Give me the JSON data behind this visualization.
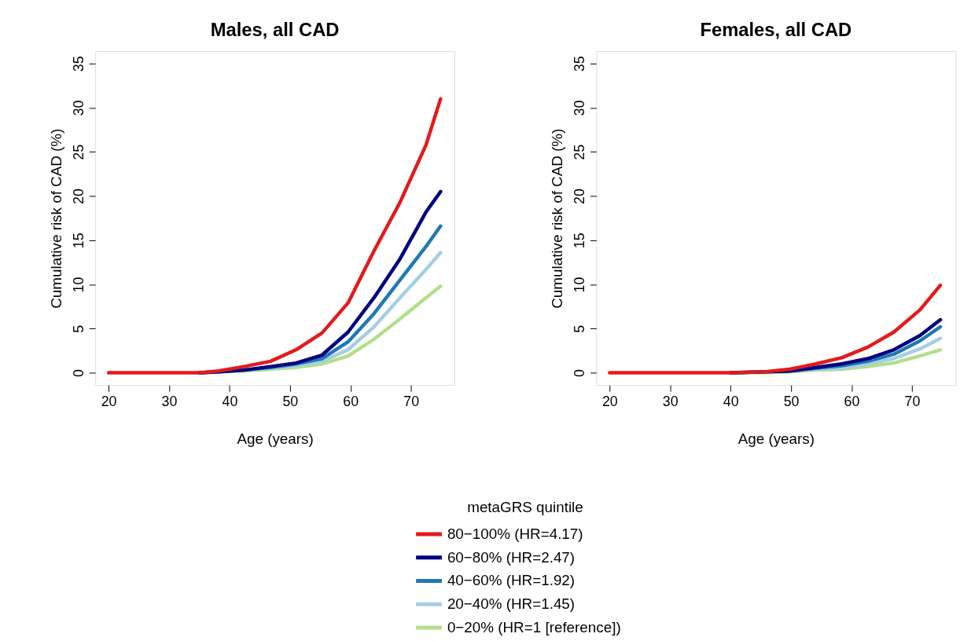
{
  "chart_data": [
    {
      "type": "line",
      "title": "Males, all CAD",
      "xlabel": "Age (years)",
      "ylabel": "Cumulative risk of CAD (%)",
      "xlim": [
        17.8,
        77.2
      ],
      "xticks": [
        20,
        30,
        40,
        50,
        60,
        70
      ],
      "ylim": [
        -1.4,
        36.4
      ],
      "yticks": [
        0,
        5,
        10,
        15,
        20,
        25,
        30,
        35
      ],
      "grid": false,
      "legend": "bottom",
      "legend_title": "metaGRS quintile",
      "line_style": "solid",
      "marker": "none",
      "series": [
        {
          "name": "80−100% (HR=4.17)",
          "color": "#e41a1c",
          "x": [
            20,
            30,
            35,
            38.2,
            42.4,
            46.8,
            51.0,
            55.3,
            59.6,
            63.9,
            68.2,
            72.5,
            74.9
          ],
          "values": [
            0,
            0,
            0,
            0.2,
            0.7,
            1.3,
            2.6,
            4.5,
            7.9,
            13.8,
            19.3,
            25.8,
            31.0
          ]
        },
        {
          "name": "60−80%  (HR=2.47)",
          "color": "#000080",
          "x": [
            35,
            38.2,
            42.4,
            46.8,
            51.0,
            55.3,
            59.6,
            63.9,
            68.2,
            72.5,
            74.9
          ],
          "values": [
            0,
            0.1,
            0.3,
            0.7,
            1.1,
            2.0,
            4.6,
            8.5,
            12.9,
            18.2,
            20.5
          ]
        },
        {
          "name": "40−60%  (HR=1.92)",
          "color": "#1f78b4",
          "x": [
            35,
            38.2,
            42.4,
            46.8,
            51.0,
            55.3,
            59.6,
            63.9,
            68.2,
            72.5,
            74.9
          ],
          "values": [
            0,
            0.1,
            0.3,
            0.6,
            1.0,
            1.6,
            3.5,
            6.7,
            10.5,
            14.3,
            16.6
          ]
        },
        {
          "name": "20−40%  (HR=1.45)",
          "color": "#a6cee3",
          "x": [
            35,
            38.2,
            42.4,
            46.8,
            51.0,
            55.3,
            59.6,
            63.9,
            68.2,
            72.5,
            74.9
          ],
          "values": [
            0,
            0.1,
            0.3,
            0.5,
            0.8,
            1.3,
            2.6,
            5.2,
            8.5,
            11.7,
            13.6
          ]
        },
        {
          "name": "0−20%     (HR=1 [reference])",
          "color": "#b2df8a",
          "x": [
            35,
            38.2,
            42.4,
            46.8,
            51.0,
            55.3,
            59.6,
            63.9,
            68.2,
            72.5,
            74.9
          ],
          "values": [
            0,
            0.1,
            0.2,
            0.4,
            0.6,
            1.0,
            1.9,
            3.8,
            6.1,
            8.5,
            9.8
          ]
        }
      ]
    },
    {
      "type": "line",
      "title": "Females, all CAD",
      "xlabel": "Age (years)",
      "ylabel": "Cumulative risk of CAD (%)",
      "xlim": [
        17.8,
        77.2
      ],
      "xticks": [
        20,
        30,
        40,
        50,
        60,
        70
      ],
      "ylim": [
        -1.4,
        36.4
      ],
      "yticks": [
        0,
        5,
        10,
        15,
        20,
        25,
        30,
        35
      ],
      "grid": false,
      "legend": false,
      "line_style": "solid",
      "marker": "none",
      "series": [
        {
          "name": "80−100% (HR=4.17)",
          "color": "#e41a1c",
          "x": [
            20,
            30,
            40,
            45.5,
            49.8,
            54.1,
            58.4,
            62.7,
            67.0,
            71.3,
            74.7
          ],
          "values": [
            0,
            0,
            0,
            0.1,
            0.4,
            1.0,
            1.7,
            2.9,
            4.6,
            7.1,
            9.9
          ]
        },
        {
          "name": "60−80%  (HR=2.47)",
          "color": "#000080",
          "x": [
            40,
            45.5,
            49.8,
            54.1,
            58.4,
            62.7,
            67.0,
            71.3,
            74.7
          ],
          "values": [
            0,
            0.1,
            0.2,
            0.6,
            1.0,
            1.6,
            2.6,
            4.2,
            6.0
          ]
        },
        {
          "name": "40−60%  (HR=1.92)",
          "color": "#1f78b4",
          "x": [
            40,
            45.5,
            49.8,
            54.1,
            58.4,
            62.7,
            67.0,
            71.3,
            74.7
          ],
          "values": [
            0,
            0.1,
            0.2,
            0.5,
            0.8,
            1.3,
            2.1,
            3.6,
            5.2
          ]
        },
        {
          "name": "20−40%  (HR=1.45)",
          "color": "#a6cee3",
          "x": [
            40,
            45.5,
            49.8,
            54.1,
            58.4,
            62.7,
            67.0,
            71.3,
            74.7
          ],
          "values": [
            0,
            0.1,
            0.2,
            0.4,
            0.5,
            1.0,
            1.6,
            2.7,
            3.9
          ]
        },
        {
          "name": "0−20%     (HR=1 [reference])",
          "color": "#b2df8a",
          "x": [
            40,
            45.5,
            49.8,
            54.1,
            58.4,
            62.7,
            67.0,
            71.3,
            74.7
          ],
          "values": [
            0,
            0,
            0.1,
            0.3,
            0.4,
            0.7,
            1.1,
            1.9,
            2.6
          ]
        }
      ]
    }
  ]
}
